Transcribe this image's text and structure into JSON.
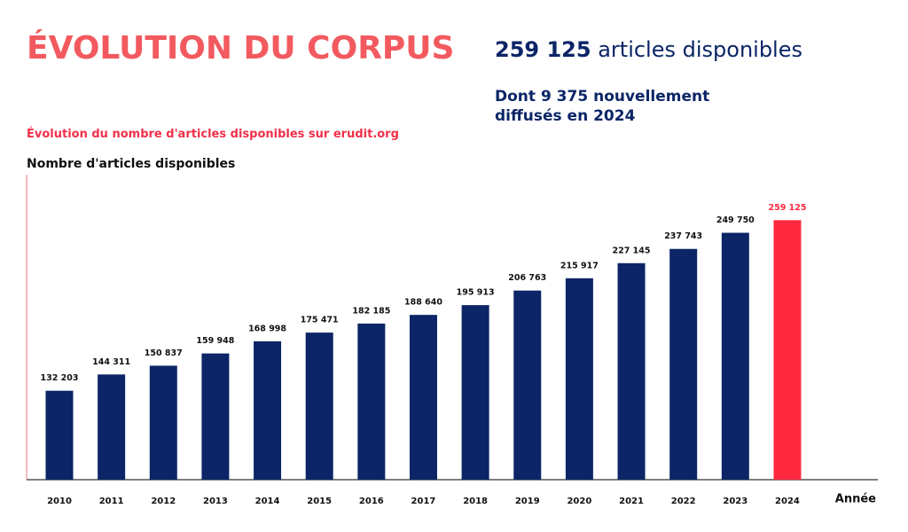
{
  "chart_data": {
    "type": "bar",
    "title": "ÉVOLUTION DU CORPUS",
    "headline_number": "259 125",
    "headline_text": "articles disponibles",
    "subheading": "Dont 9 375 nouvellement diffusés en 2024",
    "subtitle": "Évolution du nombre d'articles disponibles sur erudit.org",
    "y_label": "Nombre d'articles disponibles",
    "x_label": "Année",
    "categories": [
      "2010",
      "2011",
      "2012",
      "2013",
      "2014",
      "2015",
      "2016",
      "2017",
      "2018",
      "2019",
      "2020",
      "2021",
      "2022",
      "2023",
      "2024"
    ],
    "values": [
      132203,
      144311,
      150837,
      159948,
      168998,
      175471,
      182185,
      188640,
      195913,
      206763,
      215917,
      227145,
      237743,
      249750,
      259125
    ],
    "value_labels": [
      "132 203",
      "144 311",
      "150 837",
      "159 948",
      "168 998",
      "175 471",
      "182 185",
      "188 640",
      "195 913",
      "206 763",
      "215 917",
      "227 145",
      "237 743",
      "249 750",
      "259 125"
    ],
    "colors": [
      "#0b2566",
      "#0b2566",
      "#0b2566",
      "#0b2566",
      "#0b2566",
      "#0b2566",
      "#0b2566",
      "#0b2566",
      "#0b2566",
      "#0b2566",
      "#0b2566",
      "#0b2566",
      "#0b2566",
      "#0b2566",
      "#ff2a3f"
    ],
    "label_colors": [
      "#111111",
      "#111111",
      "#111111",
      "#111111",
      "#111111",
      "#111111",
      "#111111",
      "#111111",
      "#111111",
      "#111111",
      "#111111",
      "#111111",
      "#111111",
      "#111111",
      "#ff2a3f"
    ],
    "ylim": [
      66000,
      293000
    ]
  }
}
